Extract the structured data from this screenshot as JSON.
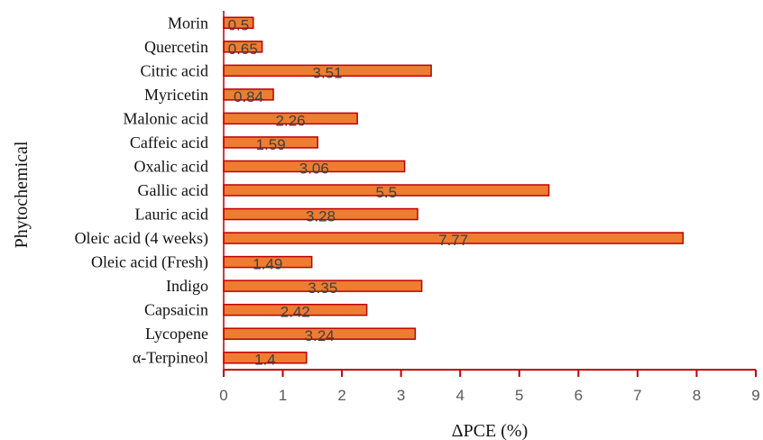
{
  "chart_data": {
    "type": "bar",
    "orientation": "horizontal",
    "title": "",
    "xlabel": "ΔPCE (%)",
    "ylabel": "Phytochemical",
    "xlim": [
      0,
      9
    ],
    "xticks": [
      "0",
      "1",
      "2",
      "3",
      "4",
      "5",
      "6",
      "7",
      "8",
      "9"
    ],
    "grid": false,
    "legend": "none",
    "bar_color": "#ED7D31",
    "bar_edge_color": "#C00000",
    "axis_color": "#C00000",
    "categories": [
      "Morin",
      "Quercetin",
      "Citric acid",
      "Myricetin",
      "Malonic acid",
      "Caffeic acid",
      "Oxalic acid",
      "Gallic acid",
      "Lauric acid",
      "Oleic acid (4 weeks)",
      "Oleic acid (Fresh)",
      "Indigo",
      "Capsaicin",
      "Lycopene",
      "α-Terpineol"
    ],
    "values": [
      0.5,
      0.65,
      3.51,
      0.84,
      2.26,
      1.59,
      3.06,
      5.5,
      3.28,
      7.77,
      1.49,
      3.35,
      2.42,
      3.24,
      1.4
    ],
    "data_labels": [
      "0.5",
      "0.65",
      "3.51",
      "0.84",
      "2.26",
      "1.59",
      "3.06",
      "5.5",
      "3.28",
      "7.77",
      "1.49",
      "3.35",
      "2.42",
      "3.24",
      "1.4"
    ]
  }
}
